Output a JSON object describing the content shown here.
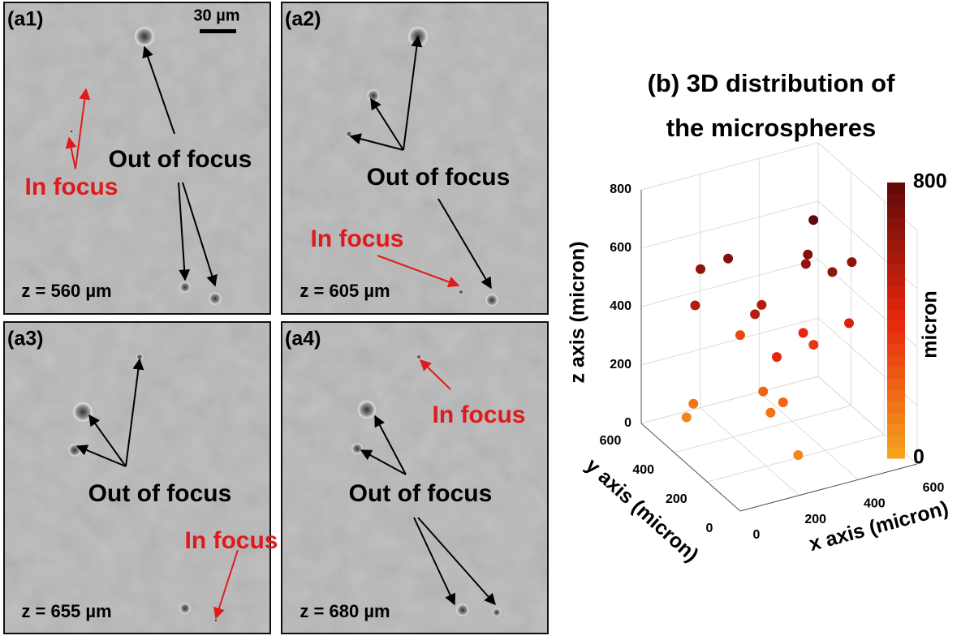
{
  "scale_bar": "30 µm",
  "panels": [
    {
      "label": "(a1)",
      "z_label": "z = 560 µm",
      "out_of_focus": "Out of focus",
      "in_focus": "In focus"
    },
    {
      "label": "(a2)",
      "z_label": "z = 605 µm",
      "out_of_focus": "Out of focus",
      "in_focus": "In focus"
    },
    {
      "label": "(a3)",
      "z_label": "z = 655 µm",
      "out_of_focus": "Out of focus",
      "in_focus": "In focus"
    },
    {
      "label": "(a4)",
      "z_label": "z = 680 µm",
      "out_of_focus": "Out of focus",
      "in_focus": "In focus"
    }
  ],
  "chart_data": {
    "type": "scatter3d",
    "title": [
      "(b) 3D distribution of",
      "the microspheres"
    ],
    "xlabel": "x axis (micron)",
    "ylabel": "y axis (micron)",
    "zlabel": "z axis (micron)",
    "x": [
      50,
      110,
      360,
      330,
      340,
      465,
      385,
      15,
      190,
      145,
      450,
      260,
      345,
      380,
      205,
      240,
      260,
      65,
      50,
      240,
      230
    ],
    "y": [
      330,
      270,
      200,
      180,
      210,
      155,
      130,
      300,
      210,
      170,
      145,
      465,
      235,
      235,
      145,
      290,
      205,
      400,
      415,
      245,
      60
    ],
    "z": [
      650,
      700,
      800,
      700,
      650,
      650,
      650,
      550,
      550,
      550,
      450,
      300,
      400,
      350,
      400,
      200,
      200,
      150,
      100,
      150,
      100
    ],
    "xlim": [
      0,
      600
    ],
    "ylim": [
      0,
      600
    ],
    "zlim": [
      0,
      800
    ],
    "xticks": [
      0,
      200,
      400,
      600
    ],
    "yticks": [
      0,
      200,
      400,
      600
    ],
    "zticks": [
      0,
      200,
      400,
      600,
      800
    ],
    "grid": true,
    "colorbar": {
      "label": "micron",
      "lim": [
        0,
        800
      ],
      "ticks": [
        0,
        800
      ],
      "colors": [
        "#f7a41e",
        "#e8260c",
        "#5e0a0a"
      ]
    }
  }
}
